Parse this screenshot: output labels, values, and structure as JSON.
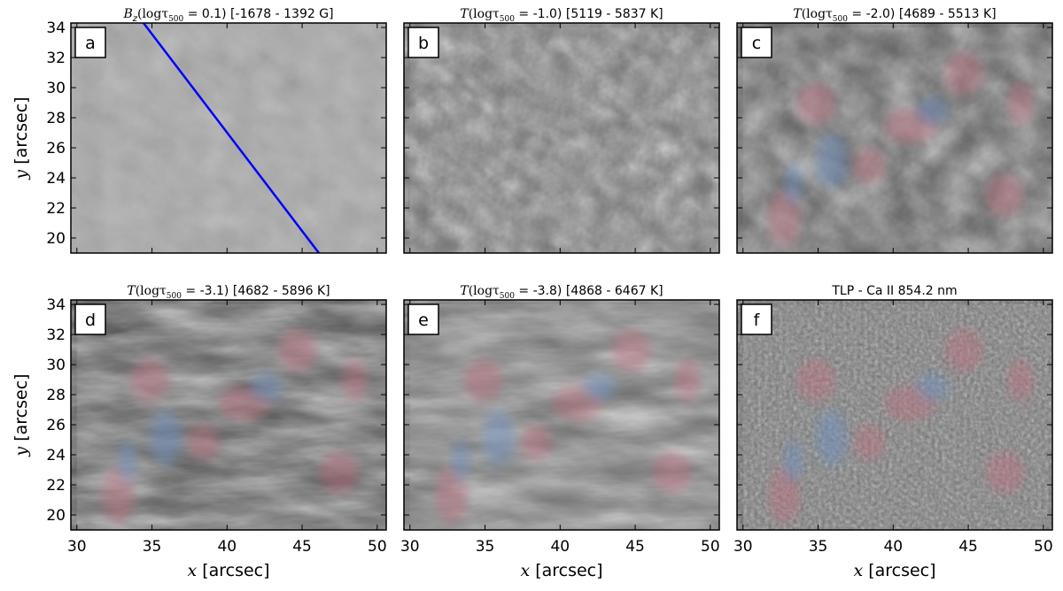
{
  "figure": {
    "x_label_var": "x",
    "y_label_var": "y",
    "unit_label": " [arcsec]",
    "x_ticks": [
      "30",
      "35",
      "40",
      "45",
      "50"
    ],
    "y_ticks": [
      "34",
      "32",
      "30",
      "28",
      "26",
      "24",
      "22",
      "20"
    ]
  },
  "panels": [
    {
      "letter": "a",
      "title_prefix": "B",
      "title_sub": "z",
      "title_tau": "(logτ",
      "title_tau_sub": "500",
      "title_value": " = 0.1)",
      "title_range": " [-1678 - 1392 G]",
      "bg": "#a9a9a9",
      "line": true,
      "overlay": false
    },
    {
      "letter": "b",
      "title_prefix": "T",
      "title_sub": "",
      "title_tau": "(logτ",
      "title_tau_sub": "500",
      "title_value": " = -1.0)",
      "title_range": " [5119 - 5837 K]",
      "bg": "#707070",
      "line": false,
      "overlay": false
    },
    {
      "letter": "c",
      "title_prefix": "T",
      "title_sub": "",
      "title_tau": "(logτ",
      "title_tau_sub": "500",
      "title_value": " = -2.0)",
      "title_range": " [4689 - 5513 K]",
      "bg": "#5c5c5c",
      "line": false,
      "overlay": true
    },
    {
      "letter": "d",
      "title_prefix": "T",
      "title_sub": "",
      "title_tau": "(logτ",
      "title_tau_sub": "500",
      "title_value": " = -3.1)",
      "title_range": " [4682 - 5896 K]",
      "bg": "#4a4a4a",
      "line": false,
      "overlay": true
    },
    {
      "letter": "e",
      "title_prefix": "T",
      "title_sub": "",
      "title_tau": "(logτ",
      "title_tau_sub": "500",
      "title_value": " = -3.8)",
      "title_range": " [4868 - 6467 K]",
      "bg": "#6e6e6e",
      "line": false,
      "overlay": true
    },
    {
      "letter": "f",
      "title_plain": "TLP - Ca II 854.2 nm",
      "bg": "#6a6a6a",
      "line": false,
      "overlay": true
    }
  ],
  "colors": {
    "line": "#0000ff",
    "pink": "#c07080",
    "blue": "#7090c0"
  }
}
